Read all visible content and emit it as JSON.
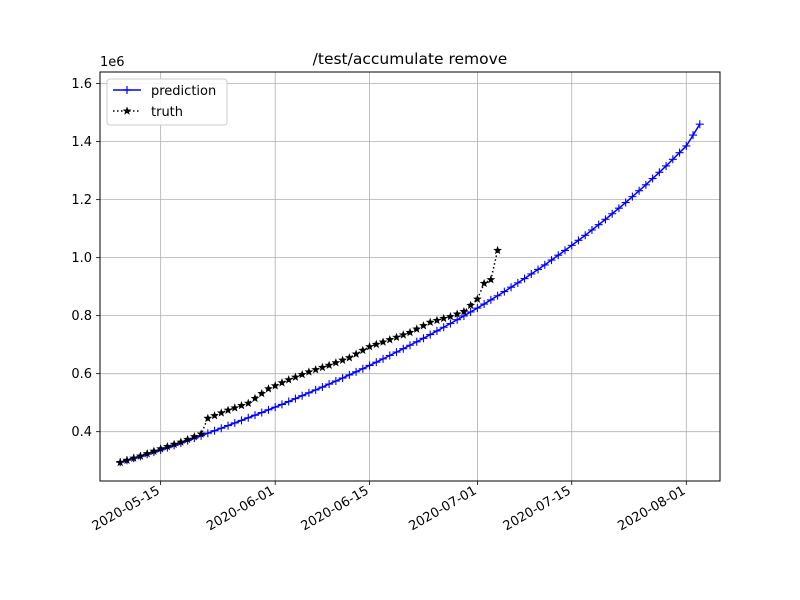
{
  "chart_data": {
    "type": "line",
    "title": "/test/accumulate remove",
    "xlabel": "",
    "ylabel": "",
    "y_offset_label": "1e6",
    "grid": true,
    "legend_placement": "upper-left",
    "x_axis": {
      "type": "date",
      "range": [
        "2020-05-06",
        "2020-08-06"
      ],
      "tick_labels": [
        "2020-05-15",
        "2020-06-01",
        "2020-06-15",
        "2020-07-01",
        "2020-07-15",
        "2020-08-01"
      ]
    },
    "y_axis": {
      "range": [
        230000,
        1640000
      ],
      "tick_values": [
        400000,
        600000,
        800000,
        1000000,
        1200000,
        1400000,
        1600000
      ],
      "tick_labels": [
        "0.4",
        "0.6",
        "0.8",
        "1.0",
        "1.2",
        "1.4",
        "1.6"
      ]
    },
    "series": [
      {
        "name": "prediction",
        "color": "#0000ff",
        "line_style": "solid",
        "marker": "plus",
        "points": [
          [
            "2020-05-09",
            295000
          ],
          [
            "2020-05-12",
            315000
          ],
          [
            "2020-05-15",
            337000
          ],
          [
            "2020-05-18",
            361000
          ],
          [
            "2020-05-21",
            386000
          ],
          [
            "2020-05-24",
            412000
          ],
          [
            "2020-05-27",
            439000
          ],
          [
            "2020-05-30",
            466000
          ],
          [
            "2020-06-02",
            494000
          ],
          [
            "2020-06-05",
            524000
          ],
          [
            "2020-06-08",
            554000
          ],
          [
            "2020-06-11",
            585000
          ],
          [
            "2020-06-14",
            617000
          ],
          [
            "2020-06-17",
            651000
          ],
          [
            "2020-06-20",
            686000
          ],
          [
            "2020-06-23",
            722000
          ],
          [
            "2020-06-26",
            760000
          ],
          [
            "2020-06-29",
            799000
          ],
          [
            "2020-07-02",
            840000
          ],
          [
            "2020-07-05",
            883000
          ],
          [
            "2020-07-08",
            928000
          ],
          [
            "2020-07-11",
            975000
          ],
          [
            "2020-07-14",
            1025000
          ],
          [
            "2020-07-17",
            1077000
          ],
          [
            "2020-07-20",
            1132000
          ],
          [
            "2020-07-23",
            1190000
          ],
          [
            "2020-07-26",
            1251000
          ],
          [
            "2020-07-29",
            1316000
          ],
          [
            "2020-08-01",
            1385000
          ],
          [
            "2020-08-03",
            1460000
          ]
        ]
      },
      {
        "name": "truth",
        "color": "#000000",
        "line_style": "dotted",
        "marker": "star",
        "points": [
          [
            "2020-05-09",
            294000
          ],
          [
            "2020-05-12",
            316000
          ],
          [
            "2020-05-15",
            341000
          ],
          [
            "2020-05-18",
            364000
          ],
          [
            "2020-05-21",
            392000
          ],
          [
            "2020-05-22",
            446000
          ],
          [
            "2020-05-25",
            474000
          ],
          [
            "2020-05-28",
            498000
          ],
          [
            "2020-05-31",
            548000
          ],
          [
            "2020-06-03",
            579000
          ],
          [
            "2020-06-06",
            606000
          ],
          [
            "2020-06-09",
            629000
          ],
          [
            "2020-06-12",
            655000
          ],
          [
            "2020-06-15",
            693000
          ],
          [
            "2020-06-18",
            717000
          ],
          [
            "2020-06-21",
            742000
          ],
          [
            "2020-06-24",
            777000
          ],
          [
            "2020-06-27",
            797000
          ],
          [
            "2020-06-29",
            814000
          ],
          [
            "2020-07-01",
            857000
          ],
          [
            "2020-07-02",
            911000
          ],
          [
            "2020-07-03",
            924000
          ],
          [
            "2020-07-04",
            1025000
          ]
        ]
      }
    ]
  }
}
